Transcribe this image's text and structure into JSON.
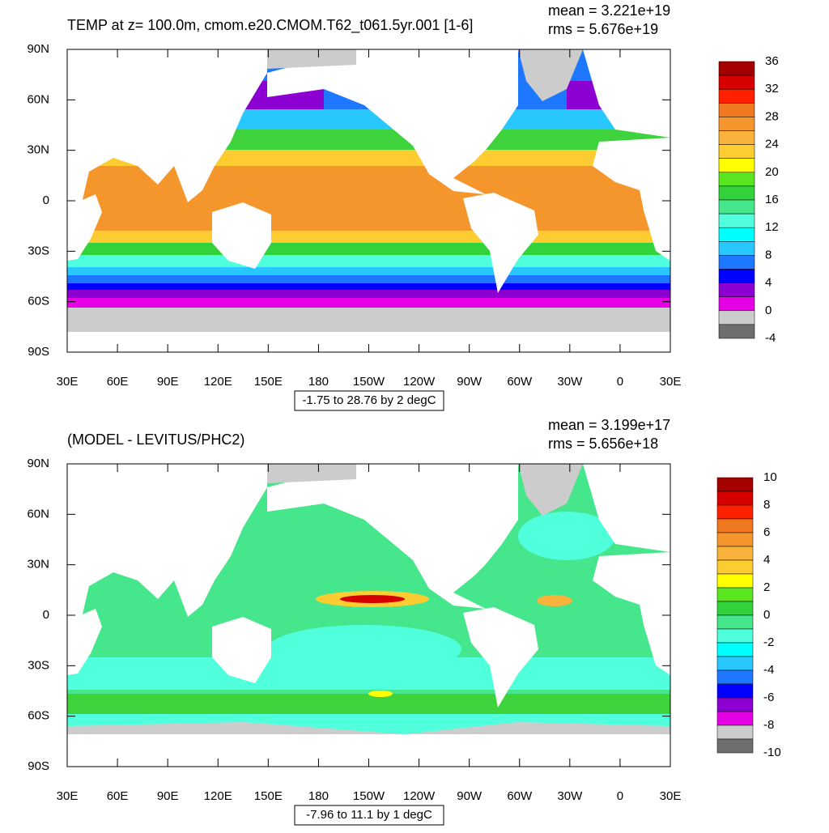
{
  "panels": [
    {
      "title": "TEMP at z= 100.0m, cmom.e20.CMOM.T62_t061.5yr.001 [1-6]",
      "mean": "mean = 3.221e+19",
      "rms": "rms = 5.676e+19",
      "range_label": "-1.75 to 28.76 by 2 degC",
      "colorbar_labels": [
        36,
        32,
        28,
        24,
        20,
        16,
        12,
        8,
        4,
        0,
        -4
      ]
    },
    {
      "title": "(MODEL - LEVITUS/PHC2)",
      "mean": "mean = 3.199e+17",
      "rms": "rms = 5.656e+18",
      "range_label": "-7.96 to 11.1 by 1 degC",
      "colorbar_labels": [
        10,
        8,
        6,
        4,
        2,
        0,
        -2,
        -4,
        -6,
        -8,
        -10
      ]
    }
  ],
  "xticks": [
    "30E",
    "60E",
    "90E",
    "120E",
    "150E",
    "180",
    "150W",
    "120W",
    "90W",
    "60W",
    "30W",
    "0",
    "30E"
  ],
  "yticks": [
    "90N",
    "60N",
    "30N",
    "0",
    "30S",
    "60S",
    "90S"
  ],
  "colorbar_colors": [
    "#a50000",
    "#d70000",
    "#ff2000",
    "#f07820",
    "#f5962d",
    "#f9b23c",
    "#fccc30",
    "#ffff00",
    "#5ae61e",
    "#32d23c",
    "#46e68c",
    "#50ffdc",
    "#00ffff",
    "#28c8ff",
    "#1e78ff",
    "#0000ff",
    "#8c00d2",
    "#e600e6",
    "#cccccc",
    "#6e6e6e"
  ]
}
